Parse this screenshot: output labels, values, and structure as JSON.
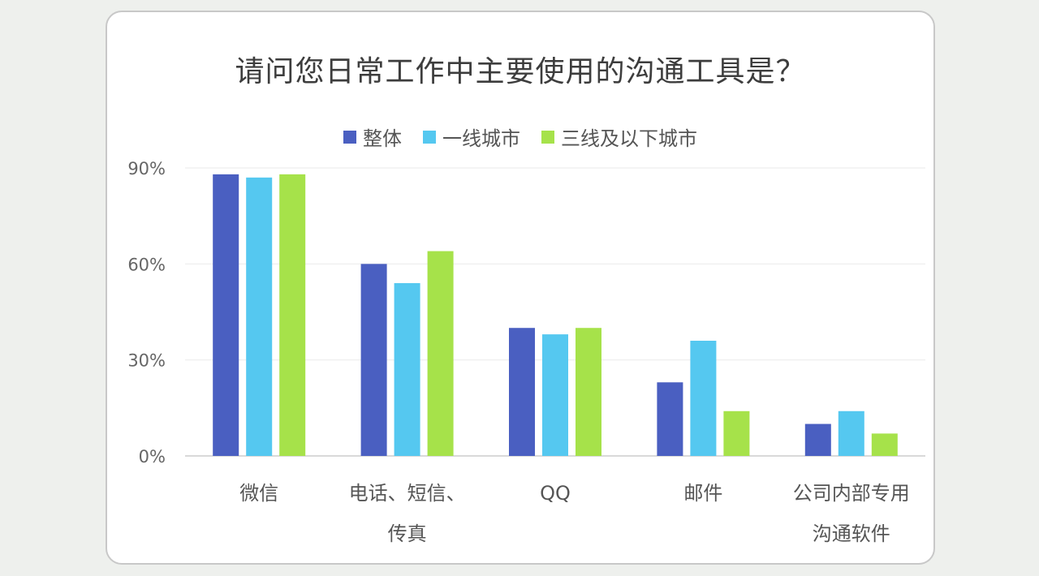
{
  "chart_data": {
    "type": "bar",
    "title": "请问您日常工作中主要使用的沟通工具是？",
    "categories": [
      "微信",
      "电话、短信、\n传真",
      "QQ",
      "邮件",
      "公司内部专用\n沟通软件"
    ],
    "series": [
      {
        "name": "整体",
        "color": "#4a5fc1",
        "values": [
          88,
          60,
          40,
          23,
          10
        ]
      },
      {
        "name": "一线城市",
        "color": "#55c8f0",
        "values": [
          87,
          54,
          38,
          36,
          14
        ]
      },
      {
        "name": "三线及以下城市",
        "color": "#a6e24a",
        "values": [
          88,
          64,
          40,
          14,
          7
        ]
      }
    ],
    "yticks": [
      "0%",
      "30%",
      "60%",
      "90%"
    ],
    "ylim": [
      0,
      90
    ],
    "grid": true,
    "legend": "top-center"
  }
}
